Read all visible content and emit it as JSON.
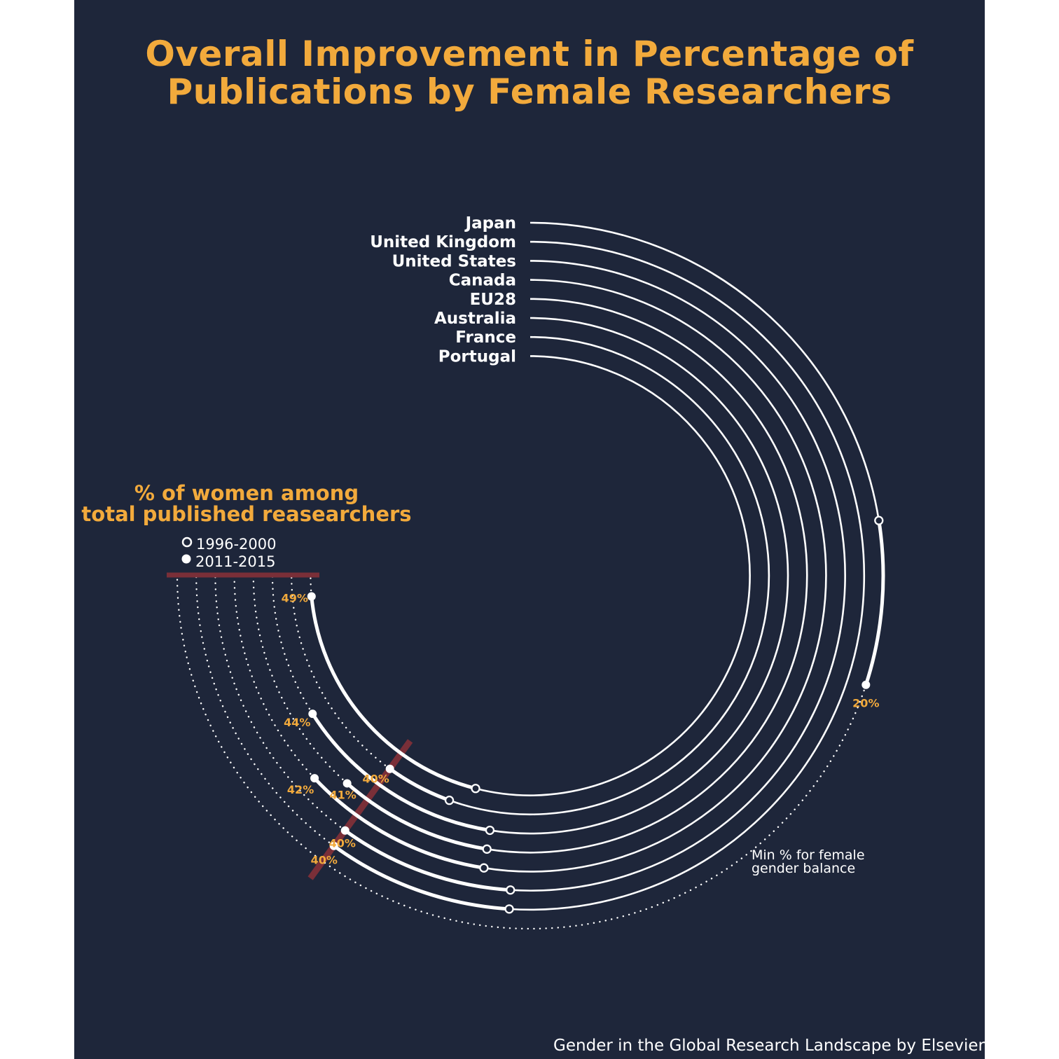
{
  "title": {
    "line1": "Overall Improvement in Percentage of",
    "line2": "Publications by Female Researchers"
  },
  "legend": {
    "title_line1": "% of women among",
    "title_line2": "total published reasearchers",
    "period_1996": "1996-2000",
    "period_2011": "2011-2015"
  },
  "threshold": {
    "value": 40,
    "label_line1": "Min % for female",
    "label_line2": "gender balance"
  },
  "source_caption": "Gender in the Global Research Landscape by Elsevier",
  "colors": {
    "background": "#1e263a",
    "accent": "#f2aa3c",
    "line": "#ffffff",
    "threshold": "#7a2f38"
  },
  "chart_data": {
    "type": "radial-dumbbell",
    "categories": [
      "Japan",
      "United Kingdom",
      "United States",
      "Canada",
      "EU28",
      "Australia",
      "France",
      "Portugal"
    ],
    "series": [
      {
        "name": "1996-2000",
        "values": [
          15,
          34,
          34,
          35,
          35,
          35,
          37,
          36
        ]
      },
      {
        "name": "2011-2015",
        "values": [
          20,
          40,
          40,
          42,
          41,
          44,
          40,
          49
        ]
      }
    ],
    "value_labels": [
      "20%",
      "40%",
      "40%",
      "42%",
      "41%",
      "44%",
      "40%",
      "49%"
    ],
    "ylim": [
      0,
      50
    ]
  }
}
